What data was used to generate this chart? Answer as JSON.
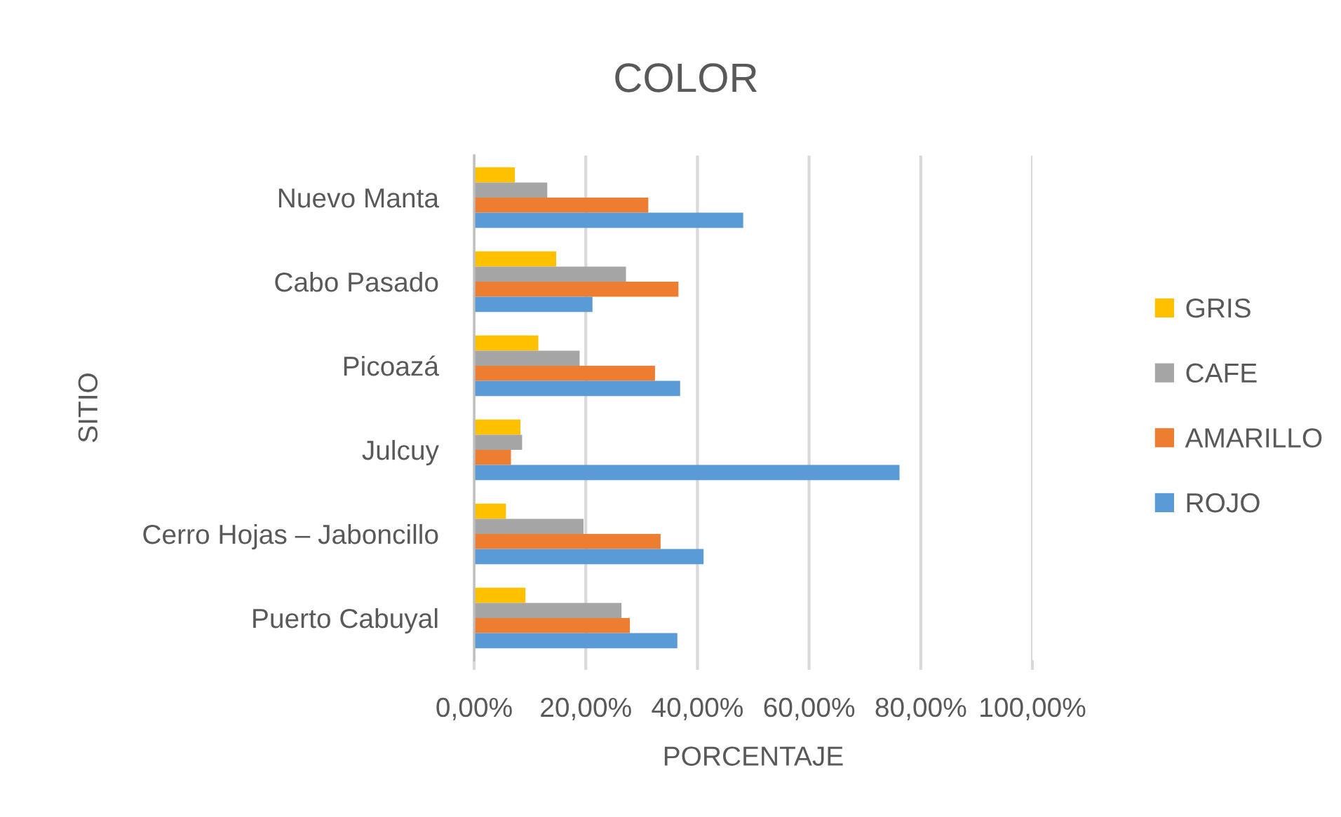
{
  "chart_data": {
    "type": "bar",
    "orientation": "horizontal",
    "title": "COLOR",
    "xlabel": "PORCENTAJE",
    "ylabel": "SITIO",
    "categories": [
      "Nuevo Manta",
      "Cabo Pasado",
      "Picoazá",
      "Julcuy",
      "Cerro Hojas – Jaboncillo",
      "Puerto Cabuyal"
    ],
    "series": [
      {
        "name": "GRIS",
        "color": "#ffc000",
        "values": [
          7.3,
          14.7,
          11.5,
          8.3,
          5.7,
          9.2
        ]
      },
      {
        "name": "CAFE",
        "color": "#a5a5a5",
        "values": [
          13.1,
          27.2,
          18.9,
          8.6,
          19.6,
          26.4
        ]
      },
      {
        "name": "AMARILLO",
        "color": "#ed7d31",
        "values": [
          31.2,
          36.6,
          32.4,
          6.6,
          33.4,
          27.9
        ]
      },
      {
        "name": "ROJO",
        "color": "#5b9bd5",
        "values": [
          48.2,
          21.2,
          36.9,
          76.2,
          41.1,
          36.4
        ]
      }
    ],
    "xlim": [
      0,
      100
    ],
    "xticks": [
      {
        "value": 0,
        "label": "0,00%"
      },
      {
        "value": 20,
        "label": "20,00%"
      },
      {
        "value": 40,
        "label": "40,00%"
      },
      {
        "value": 60,
        "label": "60,00%"
      },
      {
        "value": 80,
        "label": "80,00%"
      },
      {
        "value": 100,
        "label": "100,00%"
      }
    ],
    "grid": "x",
    "legend": "right"
  }
}
